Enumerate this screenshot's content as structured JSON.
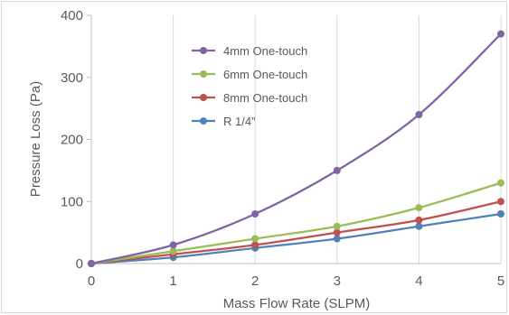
{
  "chart_data": {
    "type": "line",
    "title": "",
    "xlabel": "Mass Flow Rate (SLPM)",
    "ylabel": "Pressure Loss (Pa)",
    "xlim": [
      0,
      5
    ],
    "ylim": [
      0,
      400
    ],
    "x_ticks": [
      "0",
      "1",
      "2",
      "3",
      "4",
      "5"
    ],
    "y_ticks": [
      "0",
      "100",
      "200",
      "300",
      "400"
    ],
    "x_tick_values": [
      0,
      1,
      2,
      3,
      4,
      5
    ],
    "y_tick_values": [
      0,
      100,
      200,
      300,
      400
    ],
    "grid": "vertical",
    "smooth": true,
    "legend_position": "top-left",
    "x": [
      0,
      1,
      2,
      3,
      4,
      5
    ],
    "series": [
      {
        "name": "4mm One-touch",
        "color": "#8064a2",
        "values": [
          0,
          30,
          80,
          150,
          240,
          370
        ]
      },
      {
        "name": "6mm One-touch",
        "color": "#9bbb59",
        "values": [
          0,
          20,
          40,
          60,
          90,
          130
        ]
      },
      {
        "name": "8mm One-touch",
        "color": "#c0504d",
        "values": [
          0,
          15,
          30,
          50,
          70,
          100
        ]
      },
      {
        "name": "R 1/4”",
        "color": "#4f81bd",
        "values": [
          0,
          10,
          25,
          40,
          60,
          80
        ]
      }
    ]
  }
}
